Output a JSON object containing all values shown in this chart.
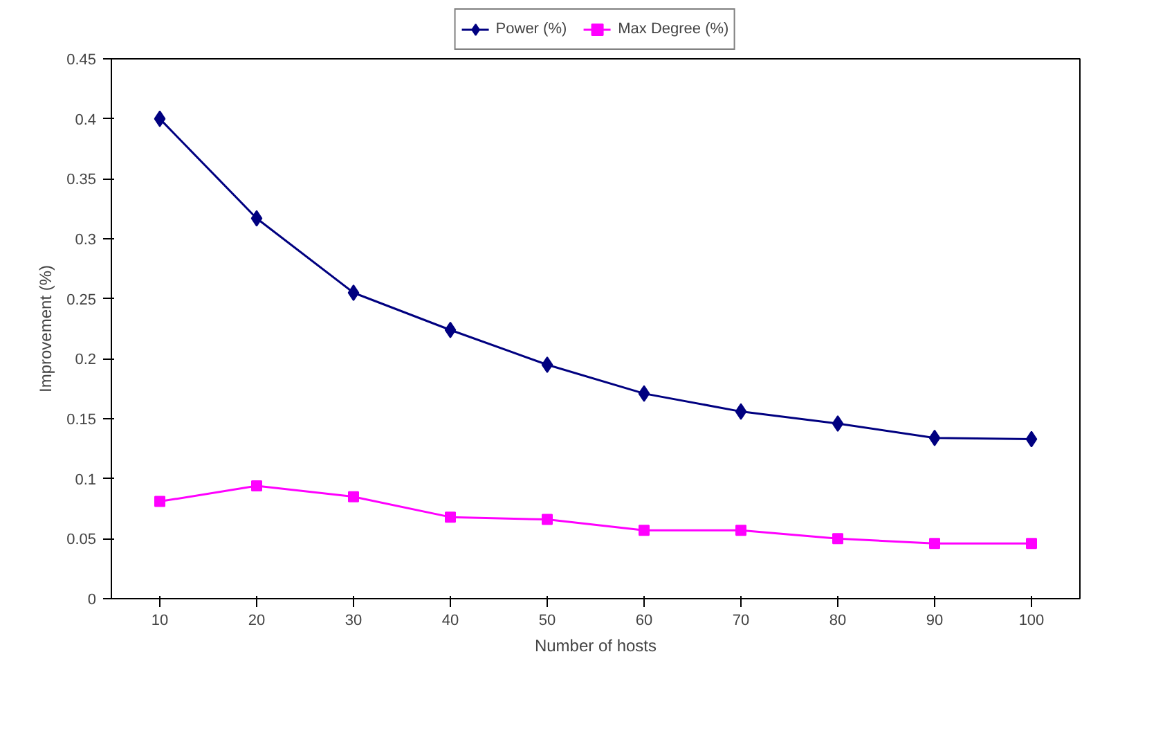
{
  "chart_data": {
    "type": "line",
    "xlabel": "Number of hosts",
    "ylabel": "Improvement (%)",
    "categories": [
      "10",
      "20",
      "30",
      "40",
      "50",
      "60",
      "70",
      "80",
      "90",
      "100"
    ],
    "series": [
      {
        "name": "Power (%)",
        "color": "#000080",
        "marker": "diamond",
        "values": [
          0.4,
          0.317,
          0.255,
          0.224,
          0.195,
          0.171,
          0.156,
          0.146,
          0.134,
          0.133
        ]
      },
      {
        "name": "Max Degree (%)",
        "color": "#ff00ff",
        "marker": "square",
        "values": [
          0.081,
          0.094,
          0.085,
          0.068,
          0.066,
          0.057,
          0.057,
          0.05,
          0.046,
          0.046
        ]
      }
    ],
    "ylim": [
      0,
      0.45
    ],
    "yticks": [
      0,
      0.05,
      0.1,
      0.15,
      0.2,
      0.25,
      0.3,
      0.35,
      0.4,
      0.45
    ],
    "grid": false,
    "legend": "top",
    "line_style": "solid"
  }
}
